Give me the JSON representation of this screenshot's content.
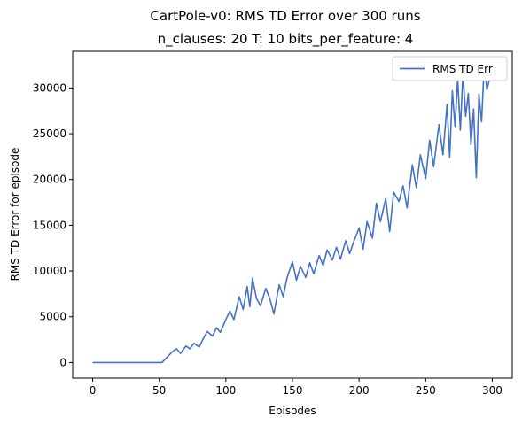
{
  "chart_data": {
    "type": "line",
    "title": "CartPole-v0: RMS TD Error over 300 runs",
    "subtitle": "n_clauses: 20 T: 10 bits_per_feature: 4",
    "xlabel": "Episodes",
    "ylabel": "RMS TD Error for episode",
    "xlim": [
      -15,
      315
    ],
    "ylim": [
      -1700,
      34000
    ],
    "xticks": [
      0,
      50,
      100,
      150,
      200,
      250,
      300
    ],
    "yticks": [
      0,
      5000,
      10000,
      15000,
      20000,
      25000,
      30000
    ],
    "grid": false,
    "legend": {
      "position": "top-right",
      "entries": [
        "RMS TD Err"
      ]
    },
    "series": [
      {
        "name": "RMS TD Err",
        "color": "#4472c4",
        "x": [
          0,
          52,
          56,
          60,
          63,
          66,
          70,
          73,
          76,
          80,
          83,
          86,
          90,
          93,
          96,
          100,
          103,
          106,
          110,
          113,
          116,
          118,
          120,
          123,
          126,
          130,
          133,
          136,
          140,
          143,
          146,
          150,
          153,
          156,
          160,
          163,
          166,
          170,
          173,
          176,
          180,
          183,
          186,
          190,
          193,
          196,
          200,
          203,
          206,
          210,
          213,
          216,
          220,
          223,
          226,
          230,
          233,
          236,
          240,
          243,
          246,
          250,
          253,
          256,
          260,
          263,
          266,
          268,
          270,
          272,
          274,
          276,
          278,
          280,
          282,
          284,
          286,
          288,
          290,
          292,
          294,
          296,
          298,
          300
        ],
        "y": [
          0,
          0,
          600,
          1200,
          1500,
          1000,
          1800,
          1500,
          2100,
          1700,
          2600,
          3400,
          2900,
          3800,
          3300,
          4700,
          5600,
          4700,
          7200,
          5800,
          8300,
          6100,
          9200,
          7000,
          6200,
          8100,
          7000,
          5300,
          8500,
          7200,
          9300,
          11000,
          9000,
          10500,
          9300,
          10900,
          9700,
          11700,
          10600,
          12300,
          11200,
          12600,
          11300,
          13300,
          11900,
          13200,
          14700,
          12400,
          15400,
          13600,
          17400,
          15400,
          17900,
          14300,
          18600,
          17600,
          19300,
          16900,
          21600,
          19100,
          22700,
          20100,
          24300,
          21400,
          26000,
          22700,
          28200,
          22400,
          29700,
          25800,
          31000,
          25400,
          31700,
          26900,
          29400,
          23800,
          27700,
          20200,
          29300,
          26300,
          32700,
          29800,
          31000,
          32000
        ]
      }
    ]
  }
}
